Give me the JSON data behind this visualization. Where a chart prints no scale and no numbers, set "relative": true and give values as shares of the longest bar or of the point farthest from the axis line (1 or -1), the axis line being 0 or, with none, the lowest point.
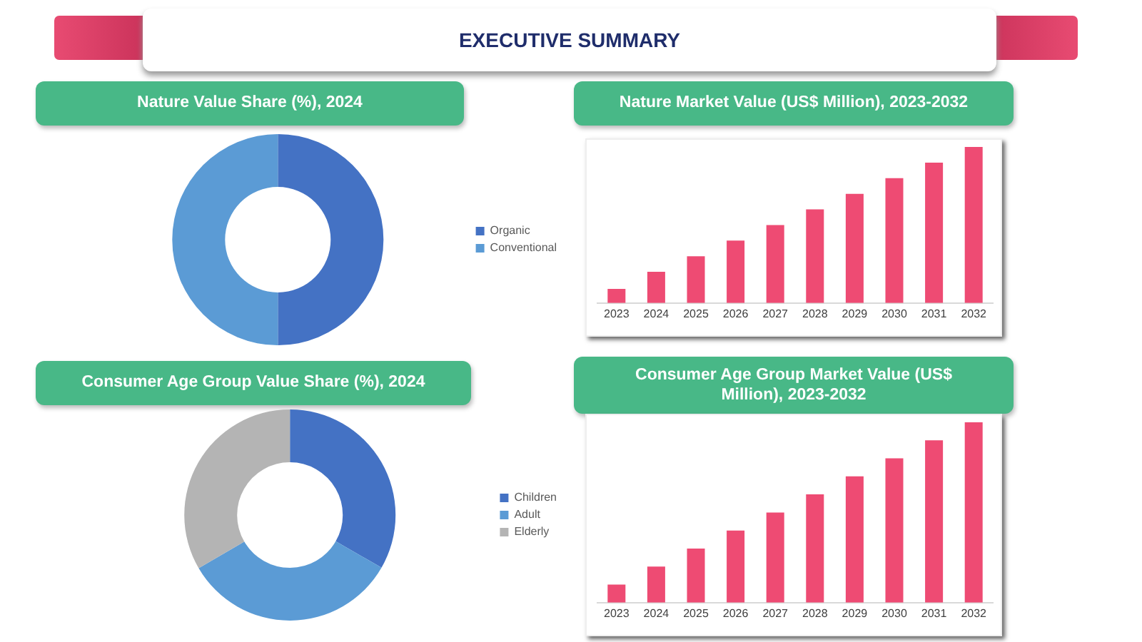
{
  "chart_data": [
    {
      "type": "other",
      "title": "EXECUTIVE SUMMARY"
    },
    {
      "type": "donut",
      "title": "Nature Value Share (%), 2024",
      "categories": [
        "Organic",
        "Conventional"
      ],
      "values": [
        50,
        50
      ],
      "colors": [
        "#4472c4",
        "#5b9bd5"
      ],
      "legend": "right"
    },
    {
      "type": "bar",
      "title": "Nature Market Value (US$ Million), 2023-2032",
      "categories": [
        "2023",
        "2024",
        "2025",
        "2026",
        "2027",
        "2028",
        "2029",
        "2030",
        "2031",
        "2032"
      ],
      "values": [
        0.09,
        0.2,
        0.3,
        0.4,
        0.5,
        0.6,
        0.7,
        0.8,
        0.9,
        1
      ],
      "color": "#ee4b73",
      "relative": true
    },
    {
      "type": "donut",
      "title": "Consumer Age Group Value Share (%), 2024",
      "categories": [
        "Children",
        "Adult",
        "Elderly"
      ],
      "values": [
        33.3,
        33.3,
        33.4
      ],
      "colors": [
        "#4472c4",
        "#5b9bd5",
        "#b4b4b4"
      ],
      "legend": "right"
    },
    {
      "type": "bar",
      "title": "Consumer Age Group Market Value (US$ Million), 2023-2032",
      "categories": [
        "2023",
        "2024",
        "2025",
        "2026",
        "2027",
        "2028",
        "2029",
        "2030",
        "2031",
        "2032"
      ],
      "values": [
        0.1,
        0.2,
        0.3,
        0.4,
        0.5,
        0.6,
        0.7,
        0.8,
        0.9,
        1
      ],
      "color": "#ee4b73",
      "relative": true
    }
  ]
}
